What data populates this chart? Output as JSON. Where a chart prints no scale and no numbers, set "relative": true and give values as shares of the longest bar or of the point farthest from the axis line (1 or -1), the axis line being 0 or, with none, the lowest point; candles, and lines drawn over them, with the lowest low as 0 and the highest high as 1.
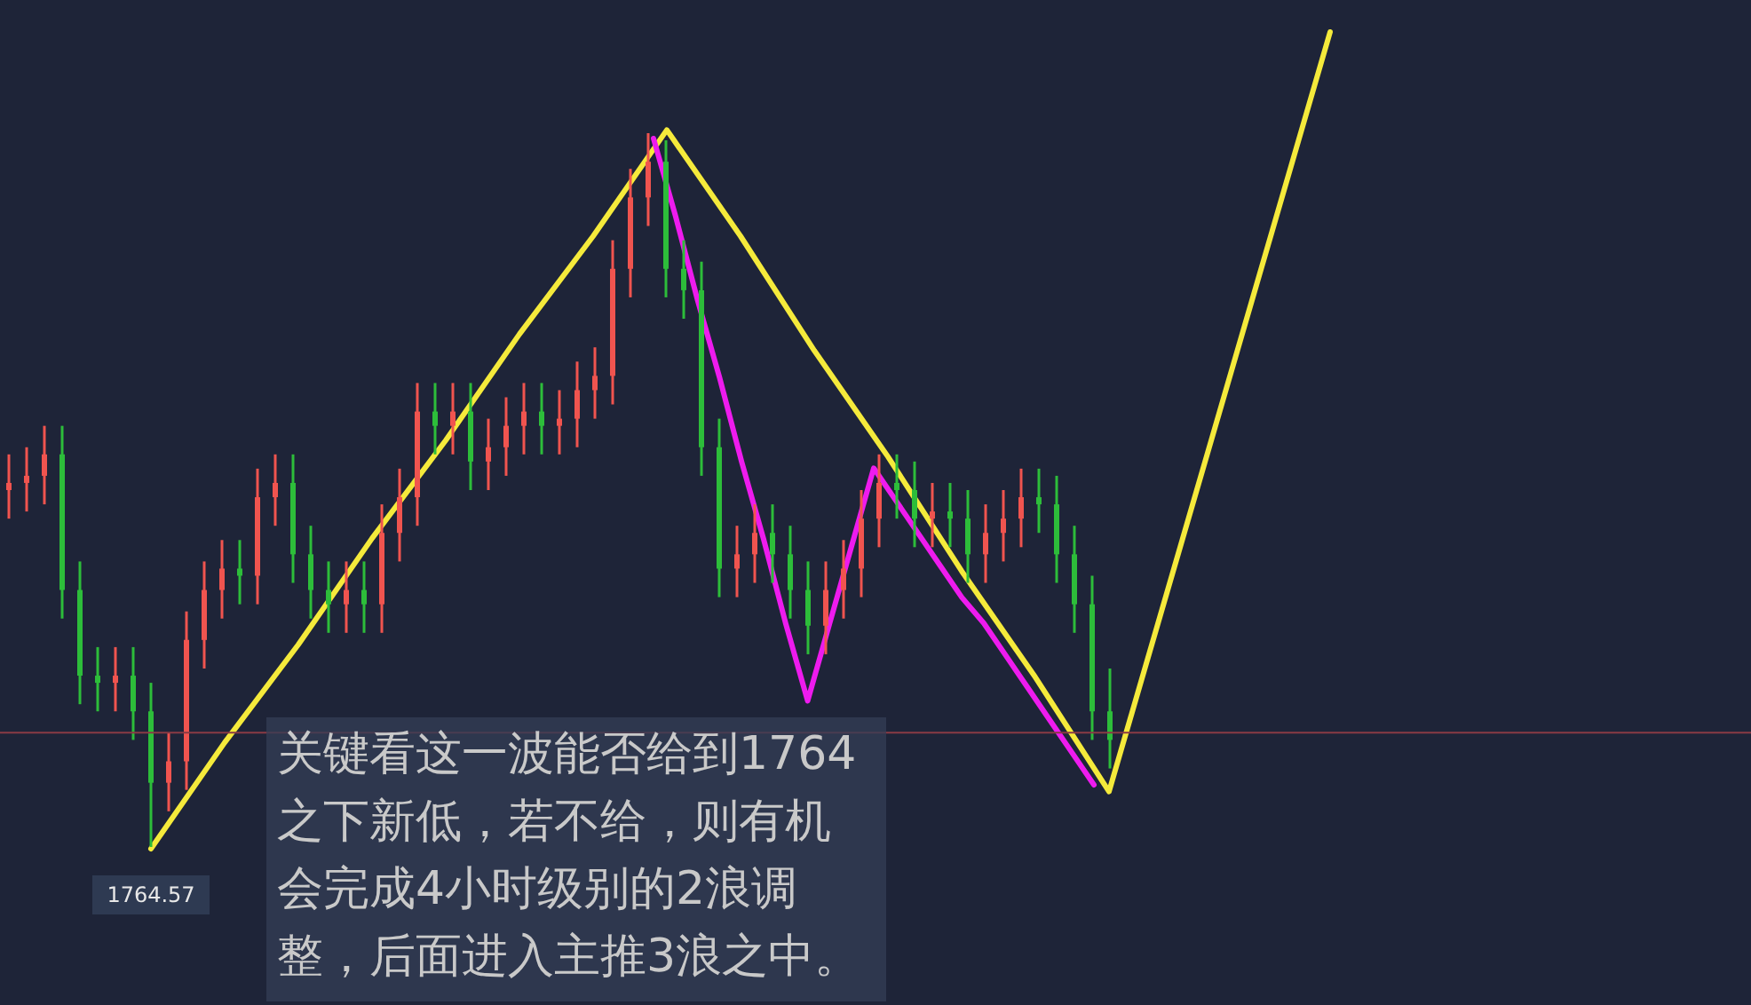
{
  "chart_data": [
    {
      "type": "candlestick",
      "relative": true,
      "categories": [
        null,
        null,
        null,
        null,
        null,
        null,
        null,
        null,
        null,
        null,
        null,
        null,
        null,
        null,
        null,
        null,
        null,
        null,
        null,
        null,
        null,
        null,
        null,
        null,
        null,
        null,
        null,
        null,
        null,
        null,
        null,
        null,
        null,
        null,
        null,
        null,
        null,
        null,
        null,
        null,
        null,
        null,
        null,
        null,
        null,
        null,
        null,
        null,
        null,
        null,
        null,
        null,
        null,
        null,
        null,
        null,
        null,
        null,
        null,
        null,
        null,
        null,
        null
      ],
      "ohlc": [
        [
          0.5,
          0.55,
          0.46,
          0.51
        ],
        [
          0.51,
          0.56,
          0.47,
          0.52
        ],
        [
          0.52,
          0.59,
          0.48,
          0.55
        ],
        [
          0.55,
          0.59,
          0.32,
          0.36
        ],
        [
          0.36,
          0.4,
          0.2,
          0.24
        ],
        [
          0.24,
          0.28,
          0.19,
          0.23
        ],
        [
          0.23,
          0.28,
          0.19,
          0.24
        ],
        [
          0.24,
          0.28,
          0.15,
          0.19
        ],
        [
          0.19,
          0.23,
          0.0,
          0.09
        ],
        [
          0.09,
          0.16,
          0.05,
          0.12
        ],
        [
          0.12,
          0.33,
          0.08,
          0.29
        ],
        [
          0.29,
          0.4,
          0.25,
          0.36
        ],
        [
          0.36,
          0.43,
          0.32,
          0.39
        ],
        [
          0.39,
          0.43,
          0.34,
          0.38
        ],
        [
          0.38,
          0.53,
          0.34,
          0.49
        ],
        [
          0.49,
          0.55,
          0.45,
          0.51
        ],
        [
          0.51,
          0.55,
          0.37,
          0.41
        ],
        [
          0.41,
          0.45,
          0.32,
          0.36
        ],
        [
          0.36,
          0.4,
          0.3,
          0.34
        ],
        [
          0.34,
          0.4,
          0.3,
          0.36
        ],
        [
          0.36,
          0.4,
          0.3,
          0.34
        ],
        [
          0.34,
          0.48,
          0.3,
          0.44
        ],
        [
          0.44,
          0.53,
          0.4,
          0.49
        ],
        [
          0.49,
          0.65,
          0.45,
          0.61
        ],
        [
          0.61,
          0.65,
          0.55,
          0.59
        ],
        [
          0.59,
          0.65,
          0.55,
          0.61
        ],
        [
          0.61,
          0.65,
          0.5,
          0.54
        ],
        [
          0.54,
          0.6,
          0.5,
          0.56
        ],
        [
          0.56,
          0.63,
          0.52,
          0.59
        ],
        [
          0.59,
          0.65,
          0.55,
          0.61
        ],
        [
          0.61,
          0.65,
          0.55,
          0.59
        ],
        [
          0.59,
          0.64,
          0.55,
          0.6
        ],
        [
          0.6,
          0.68,
          0.56,
          0.64
        ],
        [
          0.64,
          0.7,
          0.6,
          0.66
        ],
        [
          0.66,
          0.85,
          0.62,
          0.81
        ],
        [
          0.81,
          0.95,
          0.77,
          0.91
        ],
        [
          0.91,
          1.0,
          0.87,
          0.96
        ],
        [
          0.96,
          0.99,
          0.77,
          0.81
        ],
        [
          0.81,
          0.85,
          0.74,
          0.78
        ],
        [
          0.78,
          0.82,
          0.52,
          0.56
        ],
        [
          0.56,
          0.6,
          0.35,
          0.39
        ],
        [
          0.39,
          0.45,
          0.35,
          0.41
        ],
        [
          0.41,
          0.48,
          0.37,
          0.44
        ],
        [
          0.44,
          0.48,
          0.37,
          0.41
        ],
        [
          0.41,
          0.45,
          0.32,
          0.36
        ],
        [
          0.36,
          0.4,
          0.27,
          0.31
        ],
        [
          0.31,
          0.4,
          0.27,
          0.36
        ],
        [
          0.36,
          0.43,
          0.32,
          0.39
        ],
        [
          0.39,
          0.5,
          0.35,
          0.46
        ],
        [
          0.46,
          0.55,
          0.42,
          0.51
        ],
        [
          0.51,
          0.55,
          0.46,
          0.5
        ],
        [
          0.5,
          0.54,
          0.42,
          0.46
        ],
        [
          0.46,
          0.51,
          0.42,
          0.47
        ],
        [
          0.47,
          0.51,
          0.42,
          0.46
        ],
        [
          0.46,
          0.5,
          0.37,
          0.41
        ],
        [
          0.41,
          0.48,
          0.37,
          0.44
        ],
        [
          0.44,
          0.5,
          0.4,
          0.46
        ],
        [
          0.46,
          0.53,
          0.42,
          0.49
        ],
        [
          0.49,
          0.53,
          0.44,
          0.48
        ],
        [
          0.48,
          0.52,
          0.37,
          0.41
        ],
        [
          0.41,
          0.45,
          0.3,
          0.34
        ],
        [
          0.34,
          0.38,
          0.15,
          0.19
        ],
        [
          0.19,
          0.25,
          0.11,
          0.15
        ]
      ],
      "colors": [
        "#f0544f",
        "#f0544f",
        "#f0544f",
        "#2dbd3a",
        "#2dbd3a",
        "#2dbd3a",
        "#f0544f",
        "#2dbd3a",
        "#2dbd3a",
        "#f0544f",
        "#f0544f",
        "#f0544f",
        "#f0544f",
        "#2dbd3a",
        "#f0544f",
        "#f0544f",
        "#2dbd3a",
        "#2dbd3a",
        "#2dbd3a",
        "#f0544f",
        "#2dbd3a",
        "#f0544f",
        "#f0544f",
        "#f0544f",
        "#2dbd3a",
        "#f0544f",
        "#2dbd3a",
        "#f0544f",
        "#f0544f",
        "#f0544f",
        "#2dbd3a",
        "#f0544f",
        "#f0544f",
        "#f0544f",
        "#f0544f",
        "#f0544f",
        "#f0544f",
        "#2dbd3a",
        "#2dbd3a",
        "#2dbd3a",
        "#2dbd3a",
        "#f0544f",
        "#f0544f",
        "#2dbd3a",
        "#2dbd3a",
        "#2dbd3a",
        "#f0544f",
        "#f0544f",
        "#f0544f",
        "#f0544f",
        "#2dbd3a",
        "#2dbd3a",
        "#f0544f",
        "#2dbd3a",
        "#2dbd3a",
        "#f0544f",
        "#f0544f",
        "#f0544f",
        "#2dbd3a",
        "#2dbd3a",
        "#2dbd3a",
        "#2dbd3a",
        "#2dbd3a"
      ],
      "ref_lines": [
        {
          "axis": "y",
          "value": 0.16,
          "color": "#8a3a44"
        }
      ],
      "annotations": [
        "1764.57",
        "关键看这一波能否给到1764之下新低，若不给，则有机会完成4小时级别的2浪调整，后面进入主推3浪之中。"
      ]
    },
    {
      "type": "line",
      "relative": true,
      "categories": [
        null,
        null,
        null,
        null,
        null,
        null,
        null,
        null,
        null,
        null,
        null,
        null,
        null,
        null,
        null,
        null,
        null
      ],
      "series": [
        {
          "color": "#f5ea3b",
          "values": [
            0.0,
            0.13,
            0.25,
            0.38,
            0.5,
            0.63,
            0.75,
            0.88,
            0.75,
            0.61,
            0.48,
            0.34,
            0.21,
            0.07,
            0.38,
            0.69,
            1.0
          ]
        }
      ]
    },
    {
      "type": "line",
      "relative": true,
      "categories": [
        null,
        null,
        null,
        null,
        null,
        null,
        null,
        null,
        null,
        null,
        null,
        null,
        null,
        null,
        null,
        null,
        null,
        null,
        null,
        null,
        null
      ],
      "series": [
        {
          "color": "#ee1bee",
          "values": [
            1.0,
            0.88,
            0.75,
            0.63,
            0.5,
            0.38,
            0.25,
            0.13,
            0.25,
            0.37,
            0.49,
            0.44,
            0.39,
            0.34,
            0.29,
            0.25,
            0.2,
            0.15,
            0.1,
            0.05,
            0.0
          ]
        }
      ]
    }
  ]
}
